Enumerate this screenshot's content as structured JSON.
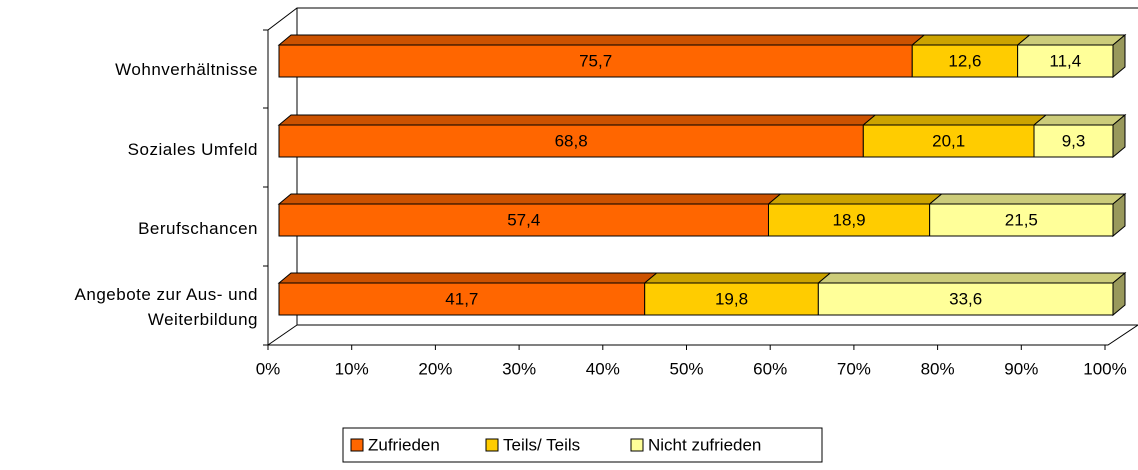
{
  "chart_data": {
    "type": "bar",
    "orientation": "horizontal",
    "stacked": "percent",
    "categories": [
      "Wohnverhältnisse",
      "Soziales Umfeld",
      "Berufschancen",
      "Angebote zur Aus- und Weiterbildung"
    ],
    "series": [
      {
        "name": "Zufrieden",
        "color": "#FF6600",
        "values": [
          75.7,
          68.8,
          57.4,
          41.7
        ],
        "value_labels": [
          "75,7",
          "68,8",
          "57,4",
          "41,7"
        ]
      },
      {
        "name": "Teils/ Teils",
        "color": "#FFCC00",
        "values": [
          12.6,
          20.1,
          18.9,
          19.8
        ],
        "value_labels": [
          "12,6",
          "20,1",
          "18,9",
          "19,8"
        ]
      },
      {
        "name": "Nicht zufrieden",
        "color": "#FFFF99",
        "values": [
          11.4,
          9.3,
          21.5,
          33.6
        ],
        "value_labels": [
          "11,4",
          "9,3",
          "21,5",
          "33,6"
        ]
      }
    ],
    "xlim": [
      0,
      100
    ],
    "xticks": [
      {
        "value": 0,
        "label": "0%"
      },
      {
        "value": 10,
        "label": "10%"
      },
      {
        "value": 20,
        "label": "20%"
      },
      {
        "value": 30,
        "label": "30%"
      },
      {
        "value": 40,
        "label": "40%"
      },
      {
        "value": 50,
        "label": "50%"
      },
      {
        "value": 60,
        "label": "60%"
      },
      {
        "value": 70,
        "label": "70%"
      },
      {
        "value": 80,
        "label": "80%"
      },
      {
        "value": 90,
        "label": "90%"
      },
      {
        "value": 100,
        "label": "100%"
      }
    ],
    "legend": "bottom"
  }
}
